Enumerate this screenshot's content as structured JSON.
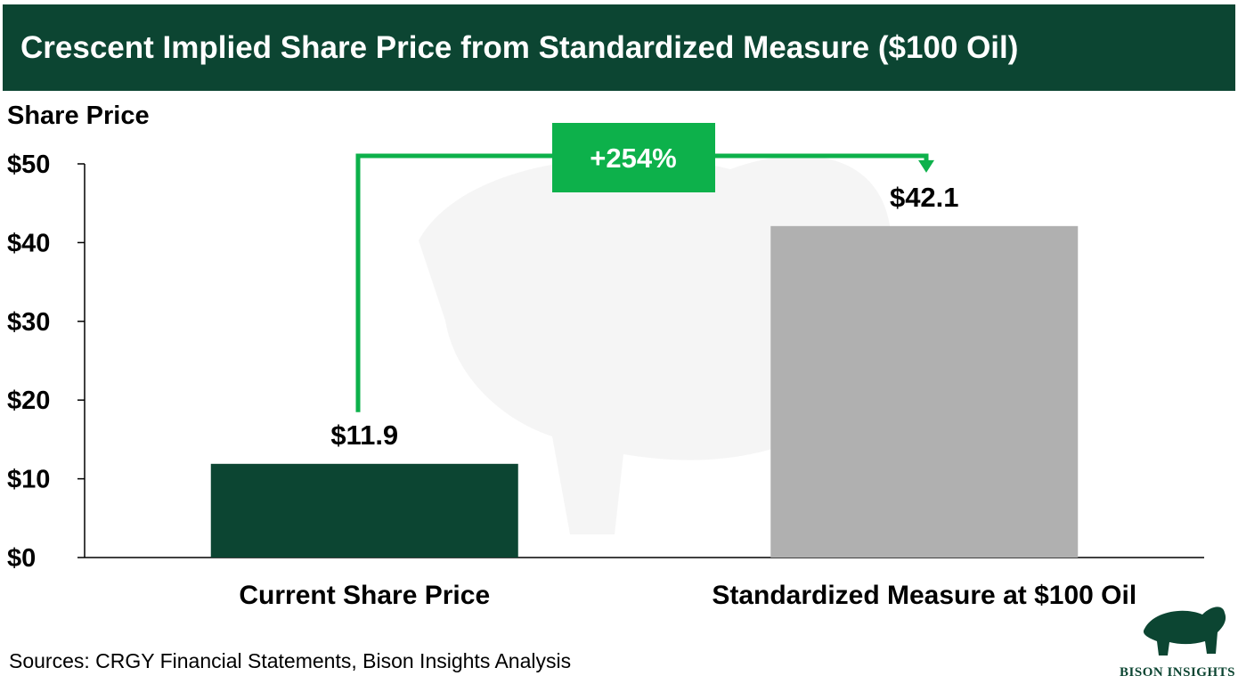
{
  "title": "Crescent Implied Share Price from Standardized Measure ($100 Oil)",
  "source": "Sources: CRGY Financial Statements, Bison Insights Analysis",
  "logo_text": "BISON INSIGHTS",
  "colors": {
    "banner": "#0c4532",
    "current_bar": "#0c4532",
    "standardized_bar": "#b0b0b0",
    "annotation": "#0db14b"
  },
  "chart_data": {
    "type": "bar",
    "ylabel": "Share Price",
    "categories": [
      "Current Share Price",
      "Standardized Measure at $100 Oil"
    ],
    "values": [
      11.9,
      42.1
    ],
    "value_labels": [
      "$11.9",
      "$42.1"
    ],
    "ylim": [
      0,
      50
    ],
    "y_ticks": [
      0,
      10,
      20,
      30,
      40,
      50
    ],
    "y_tick_labels": [
      "$0",
      "$10",
      "$20",
      "$30",
      "$40",
      "$50"
    ],
    "grid": false,
    "annotation": {
      "text": "+254%",
      "from_category": 0,
      "to_category": 1
    }
  }
}
